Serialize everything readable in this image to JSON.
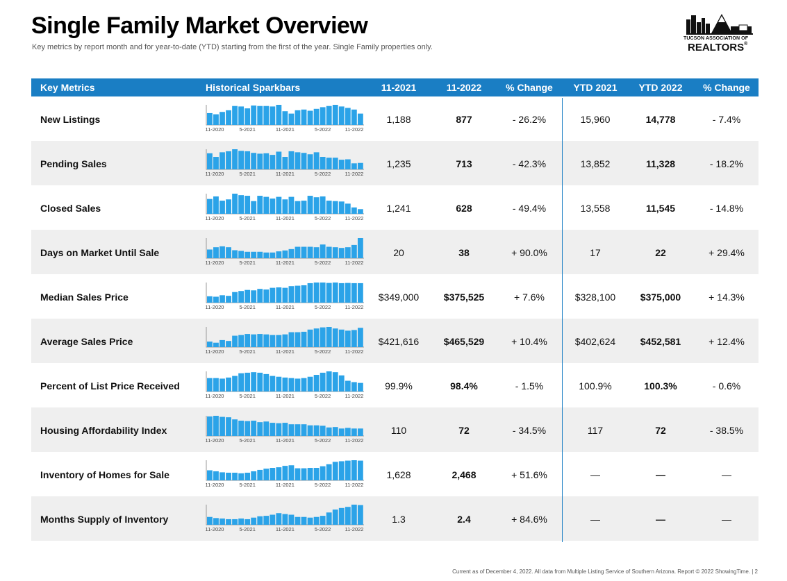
{
  "header": {
    "title": "Single Family Market Overview",
    "subtitle": "Key metrics by report month and for year-to-date (YTD) starting from the first of the year. Single Family properties only."
  },
  "logo": {
    "line1": "TUCSON ASSOCIATION OF",
    "line2": "REALTORS",
    "mark": "®"
  },
  "colors": {
    "header_bg": "#1a7ec4",
    "bar": "#2ba3e8",
    "row_shade": "#efefef"
  },
  "columns": [
    "Key Metrics",
    "Historical Sparkbars",
    "11-2021",
    "11-2022",
    "% Change",
    "YTD 2021",
    "YTD 2022",
    "% Change"
  ],
  "footer": "Current as of December 4, 2022. All data from Multiple Listing Service of Southern Arizona. Report © 2022 ShowingTime.  |  2",
  "chart_data": {
    "type": "bar",
    "x_tick_labels": [
      "11-2020",
      "5-2021",
      "11-2021",
      "5-2022",
      "11-2022"
    ],
    "rows": [
      {
        "name": "New Listings",
        "v2021": "1,188",
        "v2022": "877",
        "chg": "- 26.2%",
        "ytd2021": "15,960",
        "ytd2022": "14,778",
        "ytdchg": "- 7.4%",
        "values": [
          50,
          45,
          55,
          62,
          80,
          78,
          70,
          82,
          80,
          80,
          78,
          85,
          58,
          48,
          62,
          65,
          60,
          68,
          75,
          80,
          85,
          78,
          72,
          65,
          48
        ]
      },
      {
        "name": "Pending Sales",
        "v2021": "1,235",
        "v2022": "713",
        "chg": "- 42.3%",
        "ytd2021": "13,852",
        "ytd2022": "11,328",
        "ytdchg": "- 18.2%",
        "values": [
          80,
          62,
          85,
          90,
          100,
          92,
          90,
          82,
          78,
          80,
          72,
          88,
          62,
          90,
          85,
          82,
          75,
          85,
          62,
          58,
          58,
          48,
          50,
          30,
          32
        ]
      },
      {
        "name": "Closed Sales",
        "v2021": "1,241",
        "v2022": "628",
        "chg": "- 49.4%",
        "ytd2021": "13,558",
        "ytd2022": "11,545",
        "ytdchg": "- 14.8%",
        "values": [
          70,
          82,
          62,
          68,
          95,
          88,
          85,
          60,
          85,
          80,
          72,
          80,
          68,
          80,
          60,
          62,
          85,
          78,
          82,
          62,
          60,
          58,
          48,
          30,
          22
        ]
      },
      {
        "name": "Days on Market Until Sale",
        "v2021": "20",
        "v2022": "38",
        "chg": "+ 90.0%",
        "ytd2021": "17",
        "ytd2022": "22",
        "ytdchg": "+ 29.4%",
        "values": [
          38,
          48,
          52,
          48,
          35,
          32,
          28,
          28,
          28,
          25,
          25,
          30,
          34,
          40,
          50,
          50,
          50,
          48,
          60,
          50,
          48,
          45,
          48,
          58,
          88
        ]
      },
      {
        "name": "Median Sales Price",
        "v2021": "$349,000",
        "v2022": "$375,525",
        "chg": "+ 7.6%",
        "ytd2021": "$328,100",
        "ytd2022": "$375,000",
        "ytdchg": "+ 14.3%",
        "values": [
          30,
          28,
          35,
          32,
          50,
          55,
          60,
          58,
          65,
          62,
          70,
          72,
          70,
          78,
          80,
          82,
          92,
          95,
          95,
          93,
          95,
          92,
          93,
          92,
          92
        ]
      },
      {
        "name": "Average Sales Price",
        "v2021": "$421,616",
        "v2022": "$465,529",
        "chg": "+ 10.4%",
        "ytd2021": "$402,624",
        "ytd2022": "$452,581",
        "ytdchg": "+ 12.4%",
        "values": [
          25,
          20,
          32,
          28,
          52,
          55,
          60,
          58,
          60,
          58,
          55,
          55,
          58,
          68,
          68,
          70,
          80,
          85,
          90,
          92,
          85,
          80,
          75,
          78,
          88
        ]
      },
      {
        "name": "Percent of List Price Received",
        "v2021": "99.9%",
        "v2022": "98.4%",
        "chg": "- 1.5%",
        "ytd2021": "100.9%",
        "ytd2022": "100.3%",
        "ytdchg": "- 0.6%",
        "values": [
          50,
          50,
          48,
          52,
          58,
          68,
          70,
          72,
          70,
          65,
          58,
          55,
          52,
          50,
          48,
          50,
          55,
          62,
          70,
          75,
          72,
          60,
          40,
          35,
          32
        ]
      },
      {
        "name": "Housing Affordability Index",
        "v2021": "110",
        "v2022": "72",
        "chg": "- 34.5%",
        "ytd2021": "117",
        "ytd2022": "72",
        "ytdchg": "- 38.5%",
        "values": [
          92,
          95,
          90,
          88,
          78,
          72,
          70,
          72,
          65,
          68,
          62,
          60,
          62,
          55,
          55,
          55,
          50,
          50,
          48,
          40,
          42,
          35,
          38,
          35,
          35
        ]
      },
      {
        "name": "Inventory of Homes for Sale",
        "v2021": "1,628",
        "v2022": "2,468",
        "chg": "+ 51.6%",
        "ytd2021": "—",
        "ytd2022": "—",
        "ytdchg": "—",
        "values": [
          50,
          45,
          40,
          38,
          38,
          35,
          38,
          45,
          52,
          58,
          62,
          65,
          72,
          75,
          60,
          60,
          62,
          62,
          70,
          80,
          92,
          95,
          98,
          100,
          98
        ]
      },
      {
        "name": "Months Supply of Inventory",
        "v2021": "1.3",
        "v2022": "2.4",
        "chg": "+ 84.6%",
        "ytd2021": "—",
        "ytd2022": "—",
        "ytdchg": "—",
        "values": [
          35,
          30,
          28,
          25,
          25,
          28,
          25,
          32,
          38,
          40,
          45,
          52,
          48,
          45,
          35,
          35,
          32,
          35,
          40,
          55,
          68,
          75,
          80,
          90,
          88
        ]
      }
    ]
  }
}
